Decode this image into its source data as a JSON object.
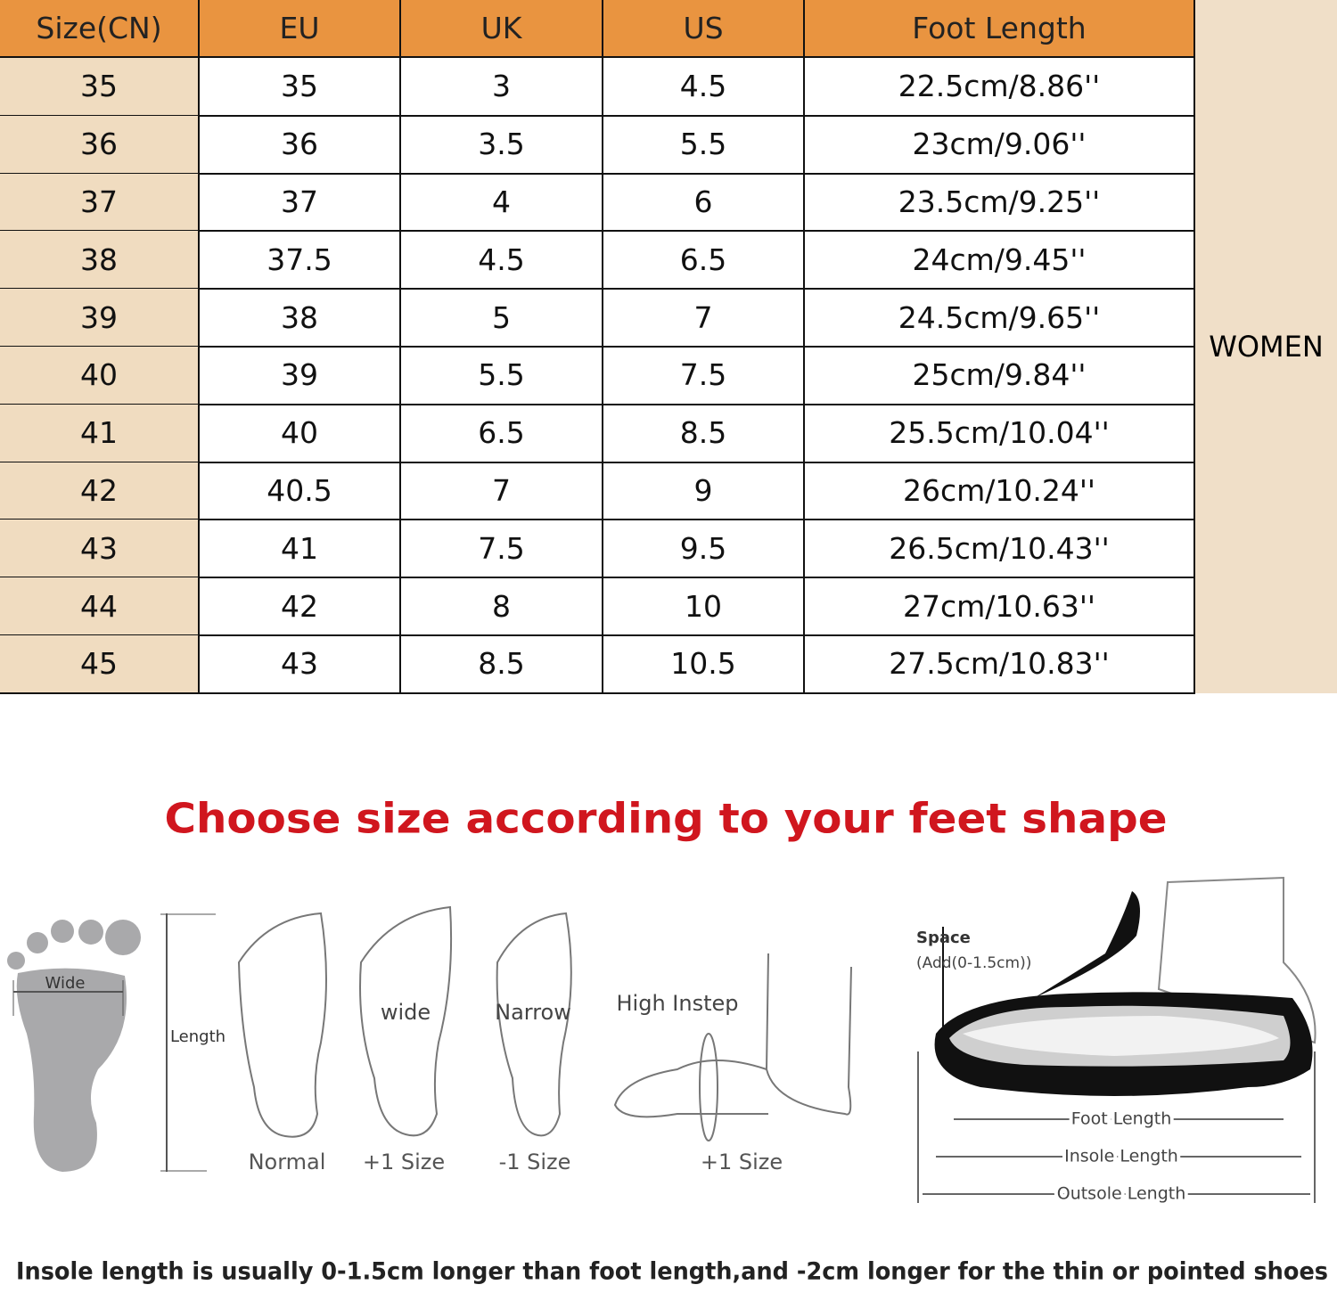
{
  "table": {
    "headers": [
      "Size(CN)",
      "EU",
      "UK",
      "US",
      "Foot Length"
    ],
    "rows": [
      [
        "35",
        "35",
        "3",
        "4.5",
        "22.5cm/8.86''"
      ],
      [
        "36",
        "36",
        "3.5",
        "5.5",
        "23cm/9.06''"
      ],
      [
        "37",
        "37",
        "4",
        "6",
        "23.5cm/9.25''"
      ],
      [
        "38",
        "37.5",
        "4.5",
        "6.5",
        "24cm/9.45''"
      ],
      [
        "39",
        "38",
        "5",
        "7",
        "24.5cm/9.65''"
      ],
      [
        "40",
        "39",
        "5.5",
        "7.5",
        "25cm/9.84''"
      ],
      [
        "41",
        "40",
        "6.5",
        "8.5",
        "25.5cm/10.04''"
      ],
      [
        "42",
        "40.5",
        "7",
        "9",
        "26cm/10.24''"
      ],
      [
        "43",
        "41",
        "7.5",
        "9.5",
        "26.5cm/10.43''"
      ],
      [
        "44",
        "42",
        "8",
        "10",
        "27cm/10.63''"
      ],
      [
        "45",
        "43",
        "8.5",
        "10.5",
        "27.5cm/10.83''"
      ]
    ],
    "side_label": "WOMEN"
  },
  "guide": {
    "title": "Choose size according to your feet shape",
    "foot_width": "Wide",
    "foot_length": "Length",
    "shapes": [
      {
        "label": null,
        "caption": "Normal"
      },
      {
        "label": "wide",
        "caption": "+1 Size"
      },
      {
        "label": "Narrow",
        "caption": "-1 Size"
      },
      {
        "label": "High Instep",
        "caption": "+1 Size"
      }
    ],
    "shoe": {
      "space": "Space",
      "space_note": "(Add(0-1.5cm))",
      "measures": [
        "Foot Length",
        "Insole Length",
        "Outsole Length"
      ]
    },
    "note": "Insole length is usually 0-1.5cm longer than foot length,and -2cm longer for the thin or pointed shoes"
  }
}
